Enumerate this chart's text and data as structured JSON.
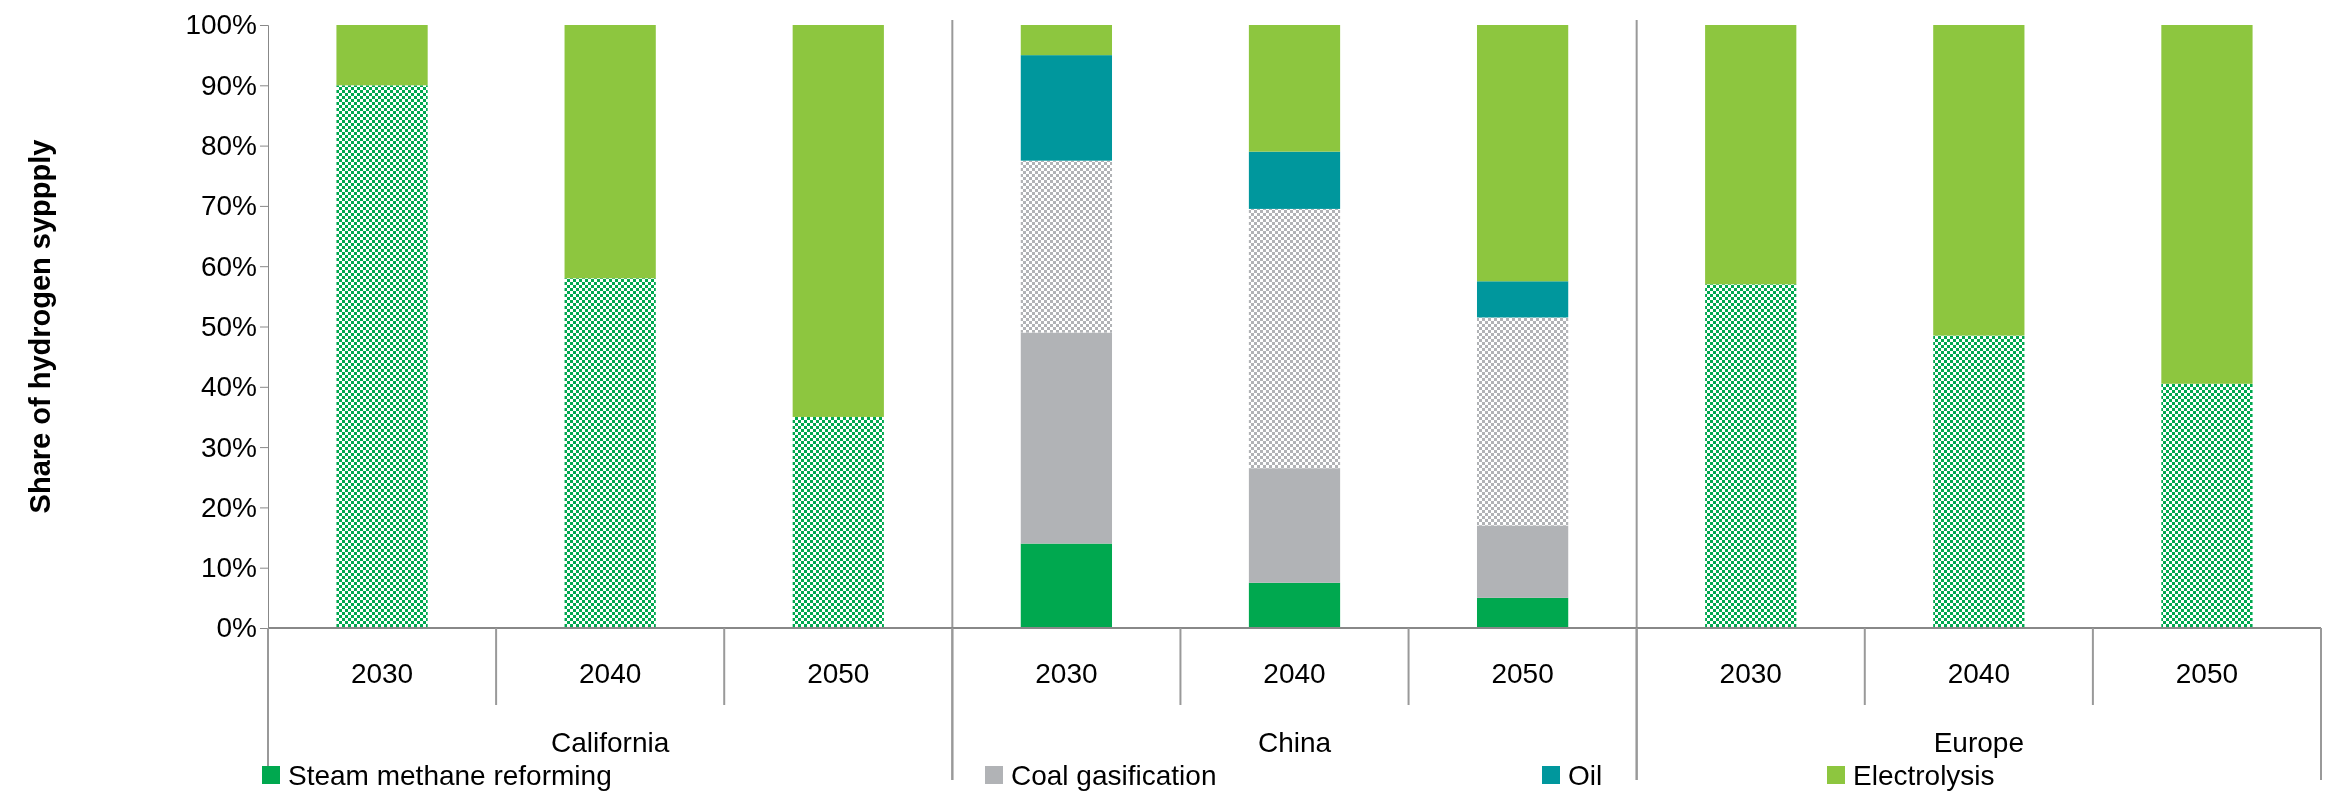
{
  "chart_data": {
    "type": "bar",
    "stacked": true,
    "ylabel": "Share of hydrogen syppply",
    "categories": [
      "2030",
      "2040",
      "2050",
      "2030",
      "2040",
      "2050",
      "2030",
      "2040",
      "2050"
    ],
    "annotations": [
      "California",
      "China",
      "Europe"
    ],
    "ylim": [
      0,
      100
    ],
    "yticks": [
      {
        "value": 0,
        "label": "0%"
      },
      {
        "value": 10,
        "label": "10%"
      },
      {
        "value": 20,
        "label": "20%"
      },
      {
        "value": 30,
        "label": "30%"
      },
      {
        "value": 40,
        "label": "40%"
      },
      {
        "value": 50,
        "label": "50%"
      },
      {
        "value": 60,
        "label": "60%"
      },
      {
        "value": 70,
        "label": "70%"
      },
      {
        "value": 80,
        "label": "80%"
      },
      {
        "value": 90,
        "label": "90%"
      },
      {
        "value": 100,
        "label": "100%"
      }
    ],
    "grid": false,
    "legend": "bottom",
    "series": [
      {
        "name": "Steam methane reforming",
        "color": "#00a84f",
        "values": [
          0,
          0,
          0,
          14,
          7.5,
          5,
          0,
          0,
          0
        ]
      },
      {
        "color": "#00a84f",
        "values": [
          90,
          58,
          35,
          0,
          0,
          0,
          57,
          48.5,
          40.5
        ]
      },
      {
        "name": "Coal gasification",
        "color": "#b1b3b6",
        "values": [
          0,
          0,
          0,
          35,
          19,
          12,
          0,
          0,
          0
        ]
      },
      {
        "color": "#b1b3b6",
        "values": [
          0,
          0,
          0,
          28.5,
          43,
          34.5,
          0,
          0,
          0
        ]
      },
      {
        "name": "Oil",
        "color": "#00979d",
        "values": [
          0,
          0,
          0,
          17.5,
          9.5,
          6,
          0,
          0,
          0
        ]
      },
      {
        "name": "Electrolysis",
        "color": "#8dc63f",
        "values": [
          10,
          42,
          65,
          5,
          21,
          42.5,
          43,
          51.5,
          59.5
        ]
      }
    ]
  }
}
